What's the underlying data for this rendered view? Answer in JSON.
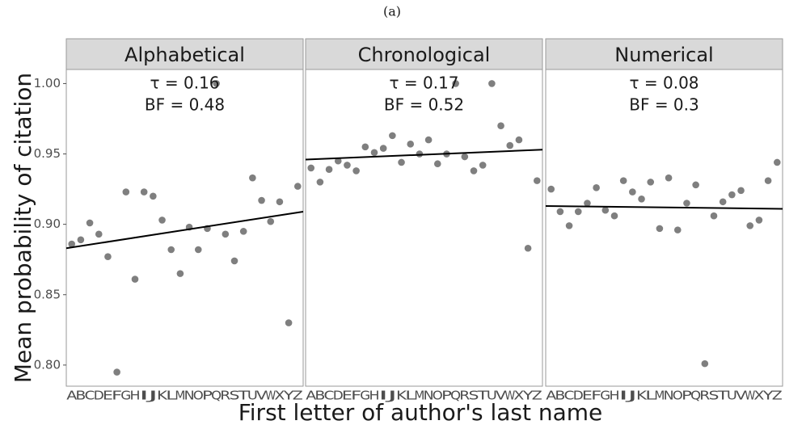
{
  "figure": {
    "title": "(a)",
    "x_label": "First letter of author's last name",
    "y_label": "Mean probability of citation"
  },
  "chart_data": [
    {
      "type": "scatter",
      "facet": "Alphabetical",
      "annotations": [
        "τ = 0.16",
        "BF = 0.48"
      ],
      "categories": [
        "A",
        "B",
        "C",
        "D",
        "E",
        "F",
        "G",
        "H",
        "I",
        "J",
        "K",
        "L",
        "M",
        "N",
        "O",
        "P",
        "Q",
        "R",
        "S",
        "T",
        "U",
        "V",
        "W",
        "X",
        "Y",
        "Z"
      ],
      "values": [
        0.886,
        0.889,
        0.901,
        0.893,
        0.877,
        0.795,
        0.923,
        0.861,
        0.923,
        0.92,
        0.903,
        0.882,
        0.865,
        0.898,
        0.882,
        0.897,
        1.0,
        0.893,
        0.874,
        0.895,
        0.933,
        0.917,
        0.902,
        0.916,
        0.83,
        0.927
      ],
      "color": "#7f7f7f",
      "trend": [
        0.883,
        0.909
      ],
      "trend_color": "#000000",
      "ylim": [
        0.785,
        1.01
      ],
      "yticks": [
        {
          "value": 0.8,
          "label": "0.80"
        },
        0.85,
        {
          "value": 0.9,
          "label": "0.90"
        },
        0.95,
        {
          "value": 1.0,
          "label": "1.00"
        }
      ]
    },
    {
      "type": "scatter",
      "facet": "Chronological",
      "annotations": [
        "τ = 0.17",
        "BF = 0.52"
      ],
      "categories": [
        "A",
        "B",
        "C",
        "D",
        "E",
        "F",
        "G",
        "H",
        "I",
        "J",
        "K",
        "L",
        "M",
        "N",
        "O",
        "P",
        "Q",
        "R",
        "S",
        "T",
        "U",
        "V",
        "W",
        "X",
        "Y",
        "Z"
      ],
      "values": [
        0.94,
        0.93,
        0.939,
        0.945,
        0.942,
        0.938,
        0.955,
        0.951,
        0.954,
        0.963,
        0.944,
        0.957,
        0.95,
        0.96,
        0.943,
        0.95,
        1.0,
        0.948,
        0.938,
        0.942,
        1.0,
        0.97,
        0.956,
        0.96,
        0.883,
        0.931
      ],
      "color": "#7f7f7f",
      "trend": [
        0.946,
        0.953
      ],
      "trend_color": "#000000",
      "ylim": [
        0.785,
        1.01
      ]
    },
    {
      "type": "scatter",
      "facet": "Numerical",
      "annotations": [
        "τ = 0.08",
        "BF = 0.3"
      ],
      "categories": [
        "A",
        "B",
        "C",
        "D",
        "E",
        "F",
        "G",
        "H",
        "I",
        "J",
        "K",
        "L",
        "M",
        "N",
        "O",
        "P",
        "Q",
        "R",
        "S",
        "T",
        "U",
        "V",
        "W",
        "X",
        "Y",
        "Z"
      ],
      "values": [
        0.925,
        0.909,
        0.899,
        0.909,
        0.915,
        0.926,
        0.91,
        0.906,
        0.931,
        0.923,
        0.918,
        0.93,
        0.897,
        0.933,
        0.896,
        0.915,
        0.928,
        0.801,
        0.906,
        0.916,
        0.921,
        0.924,
        0.899,
        0.903,
        0.931,
        0.944
      ],
      "color": "#7f7f7f",
      "trend": [
        0.913,
        0.911
      ],
      "trend_color": "#000000",
      "ylim": [
        0.785,
        1.01
      ]
    }
  ]
}
